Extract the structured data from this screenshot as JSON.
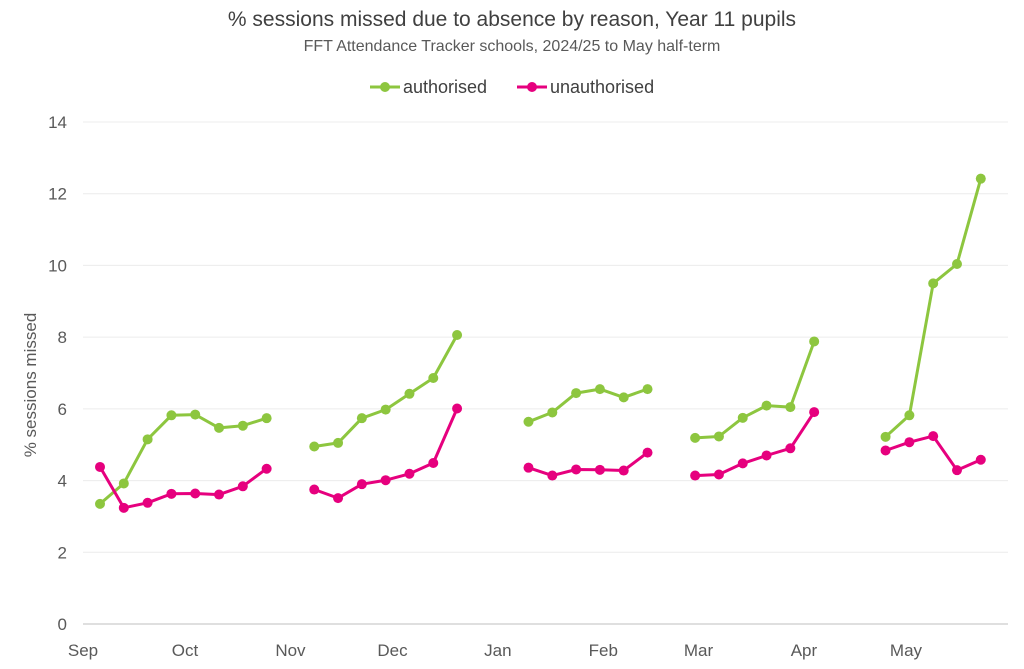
{
  "chart_data": {
    "type": "line",
    "title": "% sessions missed due to absence by reason, Year 11 pupils",
    "subtitle": "FFT Attendance Tracker schools, 2024/25 to May half-term",
    "ylabel": "% sessions missed",
    "xlabel": "",
    "ylim": [
      0,
      14
    ],
    "yticks": [
      0,
      2,
      4,
      6,
      8,
      10,
      12,
      14
    ],
    "grid": "horizontal",
    "legend_position": "top",
    "xlim": [
      "2024-09-01",
      "2025-05-31"
    ],
    "x_tick_labels": [
      "Sep",
      "Oct",
      "Nov",
      "Dec",
      "Jan",
      "Feb",
      "Mar",
      "Apr",
      "May"
    ],
    "x_ticks": [
      "2024-09-01",
      "2024-10-01",
      "2024-11-01",
      "2024-12-01",
      "2025-01-01",
      "2025-02-01",
      "2025-03-01",
      "2025-04-01",
      "2025-05-01"
    ],
    "series": [
      {
        "name": "authorised",
        "color": "#8DC63F",
        "segments": [
          {
            "x": [
              "2024-09-06",
              "2024-09-13",
              "2024-09-20",
              "2024-09-27",
              "2024-10-04",
              "2024-10-11",
              "2024-10-18",
              "2024-10-25"
            ],
            "y": [
              3.35,
              3.92,
              5.15,
              5.82,
              5.84,
              5.47,
              5.53,
              5.74
            ]
          },
          {
            "x": [
              "2024-11-08",
              "2024-11-15",
              "2024-11-22",
              "2024-11-29",
              "2024-12-06",
              "2024-12-13",
              "2024-12-20"
            ],
            "y": [
              4.95,
              5.05,
              5.74,
              5.98,
              6.42,
              6.86,
              8.06
            ]
          },
          {
            "x": [
              "2025-01-10",
              "2025-01-17",
              "2025-01-24",
              "2025-01-31",
              "2025-02-07",
              "2025-02-14"
            ],
            "y": [
              5.64,
              5.9,
              6.44,
              6.55,
              6.32,
              6.55
            ]
          },
          {
            "x": [
              "2025-02-28",
              "2025-03-07",
              "2025-03-14",
              "2025-03-21",
              "2025-03-28",
              "2025-04-04"
            ],
            "y": [
              5.19,
              5.23,
              5.75,
              6.09,
              6.05,
              7.88
            ]
          },
          {
            "x": [
              "2025-04-25",
              "2025-05-02",
              "2025-05-09",
              "2025-05-16",
              "2025-05-23"
            ],
            "y": [
              5.22,
              5.82,
              9.5,
              10.04,
              12.42
            ]
          }
        ]
      },
      {
        "name": "unauthorised",
        "color": "#E6007E",
        "segments": [
          {
            "x": [
              "2024-09-06",
              "2024-09-13",
              "2024-09-20",
              "2024-09-27",
              "2024-10-04",
              "2024-10-11",
              "2024-10-18",
              "2024-10-25"
            ],
            "y": [
              4.38,
              3.24,
              3.38,
              3.63,
              3.64,
              3.61,
              3.84,
              4.33
            ]
          },
          {
            "x": [
              "2024-11-08",
              "2024-11-15",
              "2024-11-22",
              "2024-11-29",
              "2024-12-06",
              "2024-12-13",
              "2024-12-20"
            ],
            "y": [
              3.75,
              3.51,
              3.9,
              4.01,
              4.19,
              4.49,
              6.01
            ]
          },
          {
            "x": [
              "2025-01-10",
              "2025-01-17",
              "2025-01-24",
              "2025-01-31",
              "2025-02-07",
              "2025-02-14"
            ],
            "y": [
              4.36,
              4.14,
              4.31,
              4.3,
              4.28,
              4.78
            ]
          },
          {
            "x": [
              "2025-02-28",
              "2025-03-07",
              "2025-03-14",
              "2025-03-21",
              "2025-03-28",
              "2025-04-04"
            ],
            "y": [
              4.14,
              4.17,
              4.48,
              4.7,
              4.9,
              5.91
            ]
          },
          {
            "x": [
              "2025-04-25",
              "2025-05-02",
              "2025-05-09",
              "2025-05-16",
              "2025-05-23"
            ],
            "y": [
              4.84,
              5.07,
              5.24,
              4.29,
              4.58
            ]
          }
        ]
      }
    ]
  }
}
